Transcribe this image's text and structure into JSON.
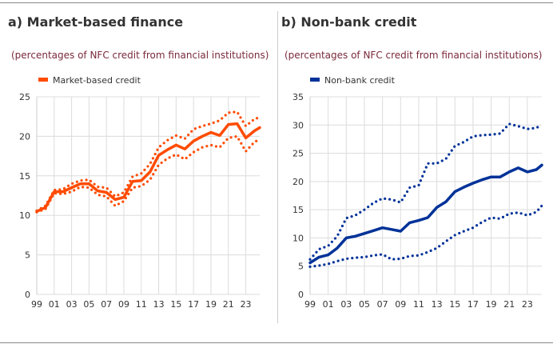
{
  "chart_data": [
    {
      "type": "line",
      "title": "a) Market-based finance",
      "subtitle": "(percentages of NFC credit from financial institutions)",
      "ylim": [
        0,
        25
      ],
      "yticks": [
        0,
        5,
        10,
        15,
        20,
        25
      ],
      "xticks": [
        "99",
        "01",
        "03",
        "05",
        "07",
        "09",
        "11",
        "13",
        "15",
        "17",
        "19",
        "21",
        "23"
      ],
      "grid": true,
      "legend_position": "top-left",
      "color": "#ff4b00",
      "x": [
        1999,
        2000,
        2001,
        2002,
        2003,
        2004,
        2005,
        2006,
        2007,
        2008,
        2009,
        2010,
        2011,
        2012,
        2013,
        2014,
        2015,
        2016,
        2017,
        2018,
        2019,
        2020,
        2021,
        2022,
        2023,
        2024,
        2024.6
      ],
      "series": [
        {
          "name": "Market-based credit",
          "style": "solid",
          "values": [
            10.5,
            11.0,
            13.0,
            13.0,
            13.5,
            14.0,
            14.0,
            13.1,
            12.9,
            12.0,
            12.3,
            14.3,
            14.4,
            15.5,
            17.6,
            18.3,
            18.9,
            18.4,
            19.4,
            20.0,
            20.5,
            20.1,
            21.5,
            21.6,
            19.8,
            20.7,
            21.1
          ]
        },
        {
          "style": "dotted",
          "values": [
            10.6,
            11.2,
            13.2,
            13.3,
            14.0,
            14.4,
            14.5,
            13.6,
            13.5,
            12.4,
            12.9,
            14.9,
            15.3,
            16.5,
            18.6,
            19.5,
            20.1,
            19.7,
            20.9,
            21.3,
            21.6,
            22.0,
            23.0,
            23.1,
            21.3,
            22.2,
            22.4
          ]
        },
        {
          "style": "dotted",
          "values": [
            10.4,
            10.8,
            12.8,
            12.7,
            13.0,
            13.6,
            13.5,
            12.6,
            12.4,
            11.2,
            11.8,
            13.5,
            13.7,
            14.5,
            16.4,
            17.2,
            17.7,
            17.1,
            18.0,
            18.6,
            18.9,
            18.6,
            19.8,
            20.0,
            18.1,
            19.3,
            19.6
          ]
        }
      ]
    },
    {
      "type": "line",
      "title": "b) Non-bank credit",
      "subtitle": "(percentages of NFC credit from financial institutions)",
      "ylim": [
        0,
        35
      ],
      "yticks": [
        0,
        5,
        10,
        15,
        20,
        25,
        30,
        35
      ],
      "xticks": [
        "99",
        "01",
        "03",
        "05",
        "07",
        "09",
        "11",
        "13",
        "15",
        "17",
        "19",
        "21",
        "23"
      ],
      "grid": true,
      "legend_position": "top-left",
      "color": "#003299",
      "x": [
        1999,
        2000,
        2001,
        2002,
        2003,
        2004,
        2005,
        2006,
        2007,
        2008,
        2009,
        2010,
        2011,
        2012,
        2013,
        2014,
        2015,
        2016,
        2017,
        2018,
        2019,
        2020,
        2021,
        2022,
        2023,
        2024,
        2024.6
      ],
      "series": [
        {
          "name": "Non-bank credit",
          "style": "solid",
          "values": [
            5.6,
            6.6,
            7.0,
            8.2,
            10.0,
            10.3,
            10.8,
            11.3,
            11.8,
            11.5,
            11.2,
            12.7,
            13.1,
            13.6,
            15.4,
            16.4,
            18.2,
            19.0,
            19.7,
            20.3,
            20.8,
            20.8,
            21.7,
            22.4,
            21.7,
            22.1,
            22.9
          ]
        },
        {
          "style": "dotted",
          "values": [
            6.2,
            8.0,
            8.6,
            10.3,
            13.5,
            14.0,
            15.0,
            16.2,
            17.0,
            16.8,
            16.3,
            18.9,
            19.3,
            23.2,
            23.2,
            24.0,
            26.3,
            27.0,
            28.0,
            28.2,
            28.3,
            28.5,
            30.2,
            29.8,
            29.3,
            29.5,
            30.0
          ]
        },
        {
          "style": "dotted",
          "values": [
            4.9,
            5.1,
            5.4,
            5.9,
            6.3,
            6.5,
            6.6,
            6.9,
            7.1,
            6.2,
            6.3,
            6.8,
            6.9,
            7.5,
            8.2,
            9.4,
            10.5,
            11.2,
            11.8,
            12.8,
            13.6,
            13.4,
            14.3,
            14.5,
            14.0,
            14.6,
            15.7
          ]
        }
      ]
    }
  ]
}
